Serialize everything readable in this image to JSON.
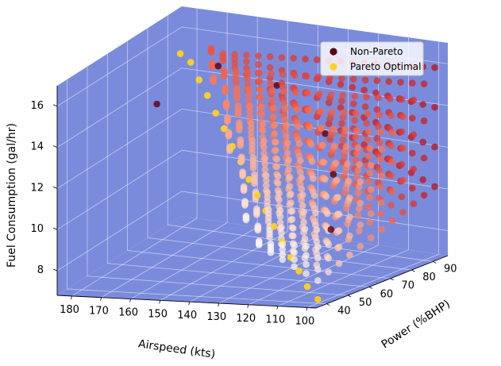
{
  "chart_data": {
    "type": "scatter",
    "projection": "3d",
    "title": "",
    "xlabel": "Airspeed (kts)",
    "ylabel": "Power (%BHP)",
    "zlabel": "Fuel Consumption (gal/hr)",
    "xlim": [
      97,
      185
    ],
    "ylim": [
      35,
      97
    ],
    "zlim": [
      6.8,
      17.0
    ],
    "xticks": [
      100,
      110,
      120,
      130,
      140,
      150,
      160,
      170,
      180
    ],
    "yticks": [
      40,
      50,
      60,
      70,
      80,
      90
    ],
    "zticks": [
      8,
      10,
      12,
      14,
      16
    ],
    "xtick_labels": [
      "100",
      "110",
      "120",
      "130",
      "140",
      "150",
      "160",
      "170",
      "180"
    ],
    "ytick_labels": [
      "40",
      "50",
      "60",
      "70",
      "80",
      "90"
    ],
    "ztick_labels": [
      "8",
      "10",
      "12",
      "14",
      "16"
    ],
    "grid": true,
    "pane_color": "#7b8bdb",
    "legend": {
      "position": "top-right",
      "entries": [
        "Non-Pareto",
        "Pareto Optimal"
      ]
    },
    "series": [
      {
        "name": "Non-Pareto",
        "marker_color": "#5c0010",
        "colormap": [
          "#fff5f0",
          "#fcbba1",
          "#fb6a4a",
          "#cb181d",
          "#67000d"
        ],
        "description_of_values": "dense grid of points: airspeed 100-185 kts, power 40-95 %BHP, fuel rises with power",
        "samples": [
          {
            "x": 100,
            "y": 40,
            "z": 7.0
          },
          {
            "x": 110,
            "y": 60,
            "z": 9.5
          },
          {
            "x": 120,
            "y": 75,
            "z": 11.5
          },
          {
            "x": 130,
            "y": 85,
            "z": 13.0
          },
          {
            "x": 150,
            "y": 90,
            "z": 15.0
          },
          {
            "x": 170,
            "y": 90,
            "z": 15.8
          },
          {
            "x": 180,
            "y": 75,
            "z": 14.5
          }
        ]
      },
      {
        "name": "Pareto Optimal",
        "marker_color": "#ffd21f",
        "description_of_values": "lower envelope: minimum fuel for each airspeed",
        "points": [
          {
            "x": 100,
            "y": 40,
            "z": 7.0
          },
          {
            "x": 105,
            "y": 42,
            "z": 7.5
          },
          {
            "x": 110,
            "y": 45,
            "z": 8.1
          },
          {
            "x": 115,
            "y": 48,
            "z": 8.6
          },
          {
            "x": 120,
            "y": 51,
            "z": 9.2
          },
          {
            "x": 125,
            "y": 54,
            "z": 9.8
          },
          {
            "x": 130,
            "y": 57,
            "z": 10.4
          },
          {
            "x": 135,
            "y": 60,
            "z": 11.0
          },
          {
            "x": 140,
            "y": 63,
            "z": 11.6
          },
          {
            "x": 145,
            "y": 66,
            "z": 12.3
          },
          {
            "x": 150,
            "y": 69,
            "z": 12.9
          },
          {
            "x": 155,
            "y": 72,
            "z": 13.6
          },
          {
            "x": 160,
            "y": 75,
            "z": 14.2
          },
          {
            "x": 165,
            "y": 78,
            "z": 14.9
          },
          {
            "x": 170,
            "y": 81,
            "z": 15.5
          },
          {
            "x": 175,
            "y": 84,
            "z": 16.2
          },
          {
            "x": 180,
            "y": 86,
            "z": 16.5
          }
        ]
      }
    ]
  }
}
